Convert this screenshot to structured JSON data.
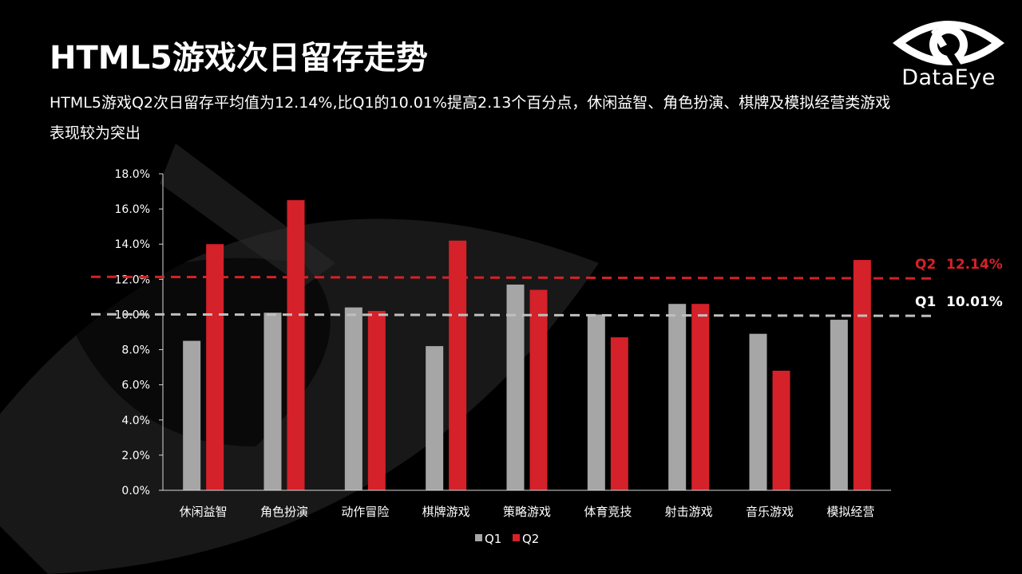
{
  "slide": {
    "title": "HTML5游戏次日留存走势",
    "subtitle": "HTML5游戏Q2次日留存平均值为12.14%,比Q1的10.01%提高2.13个百分点，休闲益智、角色扮演、棋牌及模拟经营类游戏表现较为突出",
    "brand": "DataEye"
  },
  "colors": {
    "q1": "#a6a6a6",
    "q2": "#d52129",
    "axis": "#d9d9d9",
    "q2_ref": "#d52129",
    "q1_ref": "#bfbfbf"
  },
  "chart_data": {
    "type": "bar",
    "title": "",
    "xlabel": "",
    "ylabel": "",
    "ylim": [
      0,
      18
    ],
    "y_ticks": [
      "0.0%",
      "2.0%",
      "4.0%",
      "6.0%",
      "8.0%",
      "10.0%",
      "12.0%",
      "14.0%",
      "16.0%",
      "18.0%"
    ],
    "categories": [
      "休闲益智",
      "角色扮演",
      "动作冒险",
      "棋牌游戏",
      "策略游戏",
      "体育竞技",
      "射击游戏",
      "音乐游戏",
      "模拟经营"
    ],
    "series": [
      {
        "name": "Q1",
        "values": [
          8.5,
          10.1,
          10.4,
          8.2,
          11.7,
          10.0,
          10.6,
          8.9,
          9.7
        ]
      },
      {
        "name": "Q2",
        "values": [
          14.0,
          16.5,
          10.2,
          14.2,
          11.4,
          8.7,
          10.6,
          6.8,
          13.1
        ]
      }
    ],
    "reference_lines": [
      {
        "series": "Q2",
        "name": "Q2",
        "label": "12.14%",
        "value": 12.14
      },
      {
        "series": "Q1",
        "name": "Q1",
        "label": "10.01%",
        "value": 10.01
      }
    ],
    "legend": {
      "position": "bottom",
      "entries": [
        "Q1",
        "Q2"
      ]
    }
  }
}
